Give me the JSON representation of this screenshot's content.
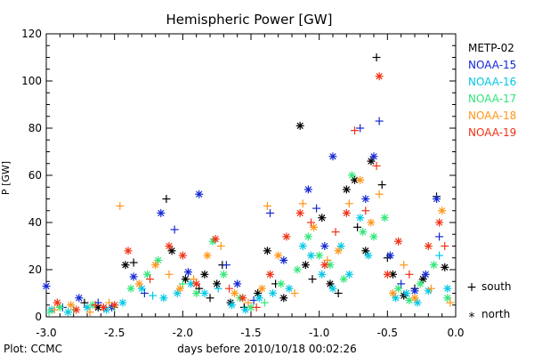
{
  "chart_data": {
    "type": "scatter",
    "title": "Hemispheric Power [GW]",
    "xlabel": "days before 2010/10/18 00:02:26",
    "ylabel": "P [GW]",
    "xlim": [
      -3.0,
      0.0
    ],
    "ylim": [
      0,
      120
    ],
    "x_ticks": [
      -3.0,
      -2.5,
      -2.0,
      -1.5,
      -1.0,
      -0.5,
      0.0
    ],
    "x_tick_labels": [
      "-3.0",
      "-2.5",
      "-2.0",
      "-1.5",
      "-1.0",
      "-0.5",
      "0.0"
    ],
    "y_ticks": [
      0,
      20,
      40,
      60,
      80,
      100,
      120
    ],
    "y_tick_labels": [
      "0",
      "20",
      "40",
      "60",
      "80",
      "100",
      "120"
    ],
    "grid": false,
    "legend_position": "right",
    "credit": "Plot: CCMC",
    "markers": {
      "south_symbol": "+",
      "south_label": "south",
      "north_symbol": "*",
      "north_label": "north"
    },
    "series": [
      {
        "name": "METP-02",
        "color": "#000000",
        "points": [
          [
            -2.42,
            22,
            "n"
          ],
          [
            -2.36,
            23,
            "s"
          ],
          [
            -2.12,
            50,
            "s"
          ],
          [
            -2.08,
            28,
            "n"
          ],
          [
            -1.98,
            16,
            "n"
          ],
          [
            -1.88,
            12,
            "s"
          ],
          [
            -1.84,
            18,
            "n"
          ],
          [
            -1.8,
            8,
            "s"
          ],
          [
            -1.75,
            14,
            "n"
          ],
          [
            -1.71,
            22,
            "s"
          ],
          [
            -1.65,
            6,
            "n"
          ],
          [
            -1.55,
            4,
            "s"
          ],
          [
            -1.45,
            10,
            "n"
          ],
          [
            -1.38,
            28,
            "n"
          ],
          [
            -1.32,
            14,
            "s"
          ],
          [
            -1.26,
            8,
            "n"
          ],
          [
            -1.14,
            81,
            "n"
          ],
          [
            -1.1,
            22,
            "n"
          ],
          [
            -1.05,
            16,
            "s"
          ],
          [
            -0.98,
            42,
            "n"
          ],
          [
            -0.92,
            14,
            "n"
          ],
          [
            -0.86,
            10,
            "s"
          ],
          [
            -0.8,
            54,
            "n"
          ],
          [
            -0.74,
            58,
            "n"
          ],
          [
            -0.72,
            38,
            "s"
          ],
          [
            -0.66,
            28,
            "n"
          ],
          [
            -0.62,
            66,
            "n"
          ],
          [
            -0.58,
            110,
            "s"
          ],
          [
            -0.54,
            56,
            "s"
          ],
          [
            -0.5,
            25,
            "s"
          ],
          [
            -0.46,
            18,
            "n"
          ],
          [
            -0.38,
            9,
            "n"
          ],
          [
            -0.3,
            12,
            "s"
          ],
          [
            -0.24,
            16,
            "n"
          ],
          [
            -0.14,
            51,
            "s"
          ],
          [
            -0.08,
            21,
            "n"
          ],
          [
            -2.72,
            6,
            "s"
          ],
          [
            -2.62,
            4,
            "n"
          ]
        ]
      },
      {
        "name": "NOAA-15",
        "color": "#1428d2",
        "points": [
          [
            -3.0,
            13,
            "n"
          ],
          [
            -2.88,
            4,
            "s"
          ],
          [
            -2.76,
            8,
            "n"
          ],
          [
            -2.62,
            6,
            "s"
          ],
          [
            -2.52,
            4,
            "n"
          ],
          [
            -2.36,
            17,
            "n"
          ],
          [
            -2.16,
            44,
            "n"
          ],
          [
            -2.06,
            37,
            "s"
          ],
          [
            -1.96,
            19,
            "n"
          ],
          [
            -1.88,
            52,
            "n"
          ],
          [
            -1.68,
            22,
            "s"
          ],
          [
            -1.6,
            14,
            "n"
          ],
          [
            -1.48,
            7,
            "s"
          ],
          [
            -1.36,
            44,
            "s"
          ],
          [
            -1.26,
            24,
            "n"
          ],
          [
            -1.08,
            54,
            "n"
          ],
          [
            -1.02,
            46,
            "s"
          ],
          [
            -0.96,
            30,
            "n"
          ],
          [
            -0.9,
            68,
            "n"
          ],
          [
            -0.7,
            80,
            "s"
          ],
          [
            -0.66,
            50,
            "n"
          ],
          [
            -0.6,
            68,
            "n"
          ],
          [
            -0.56,
            83,
            "s"
          ],
          [
            -0.48,
            26,
            "n"
          ],
          [
            -0.4,
            14,
            "s"
          ],
          [
            -0.3,
            11,
            "n"
          ],
          [
            -0.22,
            18,
            "n"
          ],
          [
            -0.14,
            50,
            "n"
          ],
          [
            -0.12,
            34,
            "s"
          ],
          [
            -2.28,
            10,
            "s"
          ]
        ]
      },
      {
        "name": "NOAA-16",
        "color": "#00c8e6",
        "points": [
          [
            -2.96,
            3,
            "n"
          ],
          [
            -2.84,
            2,
            "n"
          ],
          [
            -2.7,
            4,
            "n"
          ],
          [
            -2.56,
            3,
            "n"
          ],
          [
            -2.44,
            6,
            "n"
          ],
          [
            -2.3,
            12,
            "n"
          ],
          [
            -2.22,
            9,
            "s"
          ],
          [
            -2.14,
            8,
            "n"
          ],
          [
            -2.04,
            10,
            "n"
          ],
          [
            -1.94,
            14,
            "n"
          ],
          [
            -1.84,
            10,
            "n"
          ],
          [
            -1.74,
            12,
            "s"
          ],
          [
            -1.64,
            5,
            "n"
          ],
          [
            -1.54,
            3,
            "n"
          ],
          [
            -1.44,
            8,
            "n"
          ],
          [
            -1.34,
            10,
            "n"
          ],
          [
            -1.22,
            12,
            "n"
          ],
          [
            -1.12,
            30,
            "n"
          ],
          [
            -1.06,
            26,
            "n"
          ],
          [
            -0.98,
            18,
            "n"
          ],
          [
            -0.9,
            12,
            "n"
          ],
          [
            -0.84,
            30,
            "n"
          ],
          [
            -0.78,
            18,
            "n"
          ],
          [
            -0.7,
            42,
            "n"
          ],
          [
            -0.64,
            26,
            "n"
          ],
          [
            -0.44,
            8,
            "n"
          ],
          [
            -0.36,
            10,
            "n"
          ],
          [
            -0.28,
            6,
            "n"
          ],
          [
            -0.2,
            11,
            "n"
          ],
          [
            -0.12,
            26,
            "s"
          ],
          [
            -0.06,
            12,
            "n"
          ]
        ]
      },
      {
        "name": "NOAA-17",
        "color": "#32e678",
        "points": [
          [
            -2.98,
            2,
            "s"
          ],
          [
            -2.9,
            4,
            "n"
          ],
          [
            -2.8,
            3,
            "s"
          ],
          [
            -2.66,
            5,
            "n"
          ],
          [
            -2.5,
            4,
            "s"
          ],
          [
            -2.38,
            12,
            "n"
          ],
          [
            -2.26,
            18,
            "n"
          ],
          [
            -2.18,
            24,
            "n"
          ],
          [
            -2.0,
            14,
            "s"
          ],
          [
            -1.9,
            10,
            "n"
          ],
          [
            -1.78,
            32,
            "n"
          ],
          [
            -1.7,
            18,
            "n"
          ],
          [
            -1.58,
            8,
            "n"
          ],
          [
            -1.5,
            4,
            "n"
          ],
          [
            -1.4,
            6,
            "s"
          ],
          [
            -1.28,
            14,
            "n"
          ],
          [
            -1.16,
            20,
            "n"
          ],
          [
            -1.08,
            34,
            "n"
          ],
          [
            -1.0,
            26,
            "n"
          ],
          [
            -0.92,
            22,
            "n"
          ],
          [
            -0.82,
            16,
            "n"
          ],
          [
            -0.76,
            60,
            "n"
          ],
          [
            -0.68,
            36,
            "n"
          ],
          [
            -0.6,
            34,
            "n"
          ],
          [
            -0.52,
            42,
            "n"
          ],
          [
            -0.42,
            12,
            "n"
          ],
          [
            -0.34,
            7,
            "n"
          ],
          [
            -0.26,
            14,
            "n"
          ],
          [
            -0.16,
            22,
            "n"
          ],
          [
            -0.06,
            8,
            "n"
          ]
        ]
      },
      {
        "name": "NOAA-18",
        "color": "#ff9619",
        "points": [
          [
            -2.94,
            3,
            "s"
          ],
          [
            -2.82,
            5,
            "n"
          ],
          [
            -2.68,
            2,
            "s"
          ],
          [
            -2.54,
            6,
            "s"
          ],
          [
            -2.46,
            47,
            "s"
          ],
          [
            -2.32,
            14,
            "n"
          ],
          [
            -2.2,
            22,
            "n"
          ],
          [
            -2.1,
            18,
            "s"
          ],
          [
            -2.02,
            12,
            "n"
          ],
          [
            -1.92,
            16,
            "s"
          ],
          [
            -1.82,
            26,
            "n"
          ],
          [
            -1.72,
            30,
            "s"
          ],
          [
            -1.62,
            10,
            "n"
          ],
          [
            -1.52,
            6,
            "s"
          ],
          [
            -1.42,
            12,
            "n"
          ],
          [
            -1.38,
            47,
            "s"
          ],
          [
            -1.3,
            26,
            "n"
          ],
          [
            -1.18,
            10,
            "s"
          ],
          [
            -1.12,
            48,
            "s"
          ],
          [
            -1.04,
            38,
            "n"
          ],
          [
            -0.94,
            24,
            "s"
          ],
          [
            -0.86,
            28,
            "n"
          ],
          [
            -0.78,
            48,
            "s"
          ],
          [
            -0.7,
            58,
            "n"
          ],
          [
            -0.62,
            40,
            "n"
          ],
          [
            -0.56,
            52,
            "s"
          ],
          [
            -0.46,
            10,
            "n"
          ],
          [
            -0.38,
            22,
            "s"
          ],
          [
            -0.3,
            8,
            "n"
          ],
          [
            -0.18,
            12,
            "s"
          ],
          [
            -0.1,
            45,
            "n"
          ],
          [
            -0.04,
            6,
            "s"
          ]
        ]
      },
      {
        "name": "NOAA-19",
        "color": "#f03214",
        "points": [
          [
            -2.92,
            6,
            "n"
          ],
          [
            -2.78,
            3,
            "n"
          ],
          [
            -2.64,
            5,
            "s"
          ],
          [
            -2.5,
            5,
            "n"
          ],
          [
            -2.4,
            28,
            "n"
          ],
          [
            -2.24,
            16,
            "s"
          ],
          [
            -2.1,
            30,
            "n"
          ],
          [
            -2.0,
            26,
            "n"
          ],
          [
            -1.9,
            14,
            "n"
          ],
          [
            -1.76,
            33,
            "n"
          ],
          [
            -1.66,
            12,
            "s"
          ],
          [
            -1.56,
            8,
            "n"
          ],
          [
            -1.46,
            4,
            "s"
          ],
          [
            -1.36,
            18,
            "n"
          ],
          [
            -1.24,
            34,
            "n"
          ],
          [
            -1.14,
            44,
            "n"
          ],
          [
            -1.06,
            40,
            "s"
          ],
          [
            -0.96,
            22,
            "n"
          ],
          [
            -0.88,
            36,
            "s"
          ],
          [
            -0.8,
            44,
            "n"
          ],
          [
            -0.74,
            79,
            "s"
          ],
          [
            -0.66,
            45,
            "s"
          ],
          [
            -0.58,
            64,
            "s"
          ],
          [
            -0.56,
            102,
            "n"
          ],
          [
            -0.5,
            18,
            "n"
          ],
          [
            -0.42,
            32,
            "n"
          ],
          [
            -0.34,
            18,
            "s"
          ],
          [
            -0.2,
            30,
            "n"
          ],
          [
            -0.12,
            40,
            "n"
          ],
          [
            -0.08,
            30,
            "s"
          ],
          [
            -2.58,
            4,
            "n"
          ]
        ]
      }
    ]
  }
}
